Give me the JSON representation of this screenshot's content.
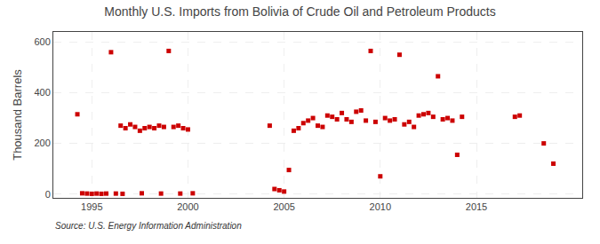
{
  "chart_data": {
    "type": "scatter",
    "title": "Monthly U.S. Imports from Bolivia of Crude Oil and Petroleum Products",
    "ylabel": "Thousand Barrels",
    "annotations": [
      "Source: U.S. Energy Information Administration"
    ],
    "x": [
      1994.25,
      1996.0,
      1996.5,
      1996.75,
      1997.0,
      1997.25,
      1997.5,
      1997.75,
      1998.0,
      1998.25,
      1998.5,
      1998.75,
      1999.0,
      1999.25,
      1999.5,
      1999.75,
      2000.0,
      1994.5,
      1994.75,
      1995.0,
      1995.25,
      1995.5,
      1995.75,
      1996.25,
      1996.6,
      1997.6,
      1998.6,
      1999.6,
      2000.25,
      2004.25,
      2004.5,
      2004.75,
      2005.0,
      2005.25,
      2005.5,
      2005.75,
      2006.0,
      2006.25,
      2006.5,
      2006.75,
      2007.0,
      2007.25,
      2007.5,
      2007.75,
      2008.0,
      2008.25,
      2008.5,
      2008.75,
      2009.0,
      2009.25,
      2009.5,
      2009.75,
      2010.0,
      2010.25,
      2010.5,
      2010.75,
      2011.0,
      2011.25,
      2011.5,
      2011.75,
      2012.0,
      2012.25,
      2012.5,
      2012.75,
      2013.0,
      2013.25,
      2013.5,
      2013.75,
      2014.0,
      2014.25,
      2017.0,
      2017.25,
      2018.5,
      2019.0
    ],
    "values": [
      315,
      560,
      270,
      260,
      275,
      265,
      250,
      260,
      265,
      260,
      270,
      265,
      565,
      265,
      270,
      260,
      255,
      3,
      2,
      1,
      2,
      1,
      2,
      2,
      1,
      3,
      2,
      2,
      3,
      270,
      20,
      15,
      10,
      95,
      250,
      260,
      280,
      290,
      300,
      270,
      265,
      310,
      305,
      295,
      320,
      295,
      285,
      325,
      330,
      290,
      565,
      285,
      70,
      300,
      290,
      295,
      550,
      275,
      285,
      265,
      310,
      315,
      320,
      305,
      465,
      295,
      300,
      290,
      155,
      305,
      305,
      310,
      200,
      120
    ],
    "color": "#cc0000",
    "marker": "square",
    "xlim": [
      1993.0,
      2020.5
    ],
    "ylim": [
      -15,
      640
    ],
    "xticks": [
      1995,
      2000,
      2005,
      2010,
      2015
    ],
    "yticks": [
      0,
      200,
      400,
      600
    ],
    "grid": true
  }
}
